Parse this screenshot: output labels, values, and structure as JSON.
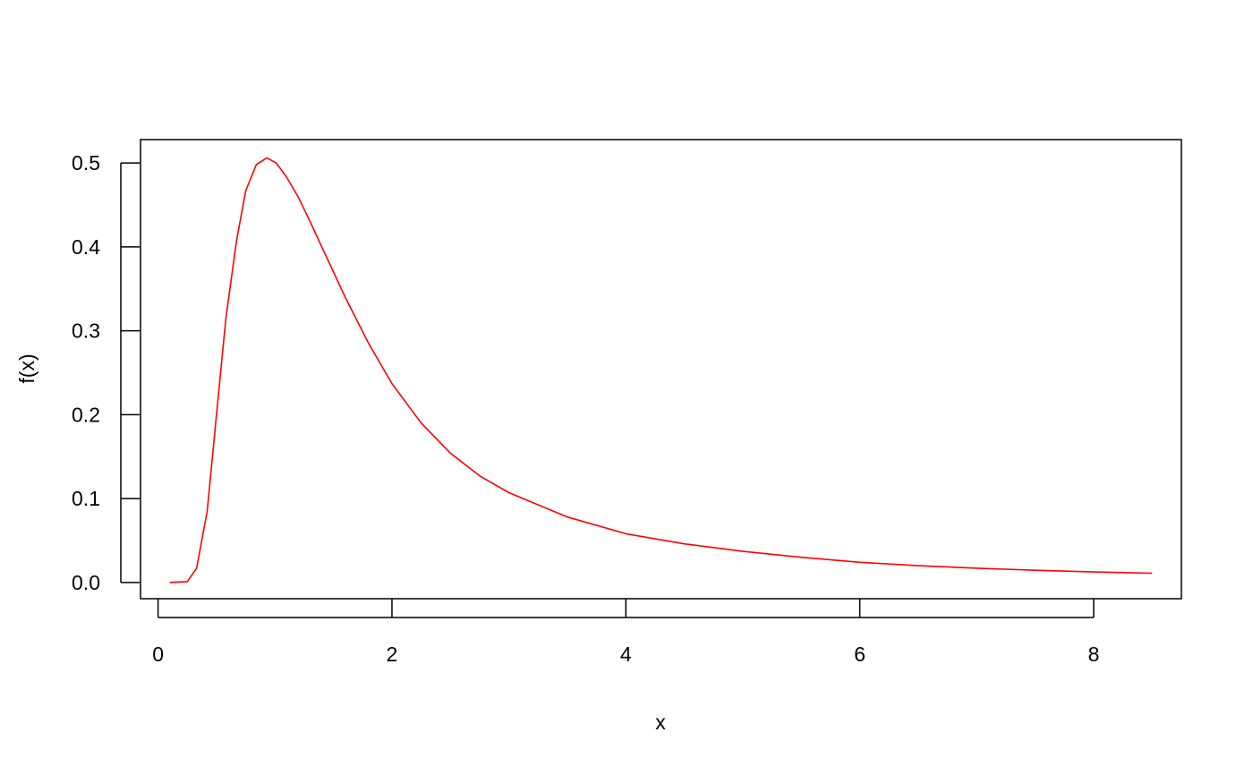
{
  "chart_data": {
    "type": "line",
    "title": "",
    "xlabel": "x",
    "ylabel": "f(x)",
    "xlim": [
      -0.15,
      8.75
    ],
    "ylim": [
      -0.0194,
      0.5278
    ],
    "grid": false,
    "x_ticks": [
      0,
      2,
      4,
      6,
      8
    ],
    "x_tick_labels": [
      "0",
      "2",
      "4",
      "6",
      "8"
    ],
    "y_ticks": [
      0.0,
      0.1,
      0.2,
      0.3,
      0.4,
      0.5
    ],
    "y_tick_labels": [
      "0.0",
      "0.1",
      "0.2",
      "0.3",
      "0.4",
      "0.5"
    ],
    "series": [
      {
        "color": "#ff0000",
        "x": [
          0.1,
          0.25,
          0.33,
          0.42,
          0.5,
          0.58,
          0.67,
          0.75,
          0.84,
          0.93,
          1.01,
          1.1,
          1.2,
          1.3,
          1.4,
          1.5,
          1.6,
          1.8,
          2.0,
          2.25,
          2.5,
          2.75,
          3.0,
          3.5,
          4.0,
          4.5,
          5.0,
          5.5,
          6.0,
          6.5,
          7.0,
          7.5,
          8.0,
          8.5
        ],
        "y": [
          0.0,
          0.001,
          0.017,
          0.085,
          0.2,
          0.315,
          0.407,
          0.467,
          0.498,
          0.506,
          0.5,
          0.483,
          0.459,
          0.43,
          0.4,
          0.37,
          0.34,
          0.285,
          0.237,
          0.19,
          0.154,
          0.127,
          0.107,
          0.078,
          0.058,
          0.046,
          0.037,
          0.03,
          0.024,
          0.02,
          0.017,
          0.0145,
          0.0125,
          0.011
        ]
      }
    ]
  }
}
